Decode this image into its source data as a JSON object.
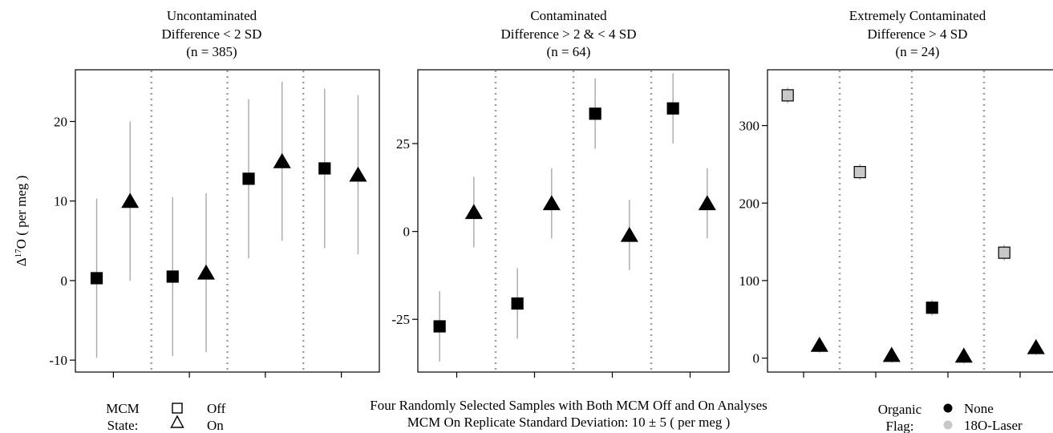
{
  "chart_data": [
    {
      "type": "scatter",
      "title_lines": [
        "Uncontaminated",
        "Difference < 2 SD",
        "(n = 385)"
      ],
      "ylabel": "Δ17O ( per meg )",
      "ylabel_parts": {
        "prefix": "Δ",
        "sup": "17",
        "rest": "O ( per meg )"
      },
      "ylim": [
        -11.5,
        26.5
      ],
      "yticks": [
        -10,
        0,
        10,
        20
      ],
      "ytick_labels": [
        "-10",
        "0",
        "10",
        "20"
      ],
      "groups": 4,
      "points": [
        {
          "group": 1,
          "mcm": "Off",
          "organic": "None",
          "y": 0.3,
          "err": 10
        },
        {
          "group": 1,
          "mcm": "On",
          "organic": "None",
          "y": 10,
          "err": 10
        },
        {
          "group": 2,
          "mcm": "Off",
          "organic": "None",
          "y": 0.5,
          "err": 10
        },
        {
          "group": 2,
          "mcm": "On",
          "organic": "None",
          "y": 1,
          "err": 10
        },
        {
          "group": 3,
          "mcm": "Off",
          "organic": "None",
          "y": 12.8,
          "err": 10
        },
        {
          "group": 3,
          "mcm": "On",
          "organic": "None",
          "y": 15,
          "err": 10
        },
        {
          "group": 4,
          "mcm": "Off",
          "organic": "None",
          "y": 14.1,
          "err": 10
        },
        {
          "group": 4,
          "mcm": "On",
          "organic": "None",
          "y": 13.3,
          "err": 10
        }
      ]
    },
    {
      "type": "scatter",
      "title_lines": [
        "Contaminated",
        "Difference > 2 & < 4 SD",
        "(n = 64)"
      ],
      "ylim": [
        -40,
        46
      ],
      "yticks": [
        -25,
        0,
        25
      ],
      "ytick_labels": [
        "-25",
        "0",
        "25"
      ],
      "groups": 4,
      "points": [
        {
          "group": 1,
          "mcm": "Off",
          "organic": "None",
          "y": -27,
          "err": 10
        },
        {
          "group": 1,
          "mcm": "On",
          "organic": "None",
          "y": 5.5,
          "err": 10
        },
        {
          "group": 2,
          "mcm": "Off",
          "organic": "None",
          "y": -20.5,
          "err": 10
        },
        {
          "group": 2,
          "mcm": "On",
          "organic": "None",
          "y": 8,
          "err": 10
        },
        {
          "group": 3,
          "mcm": "Off",
          "organic": "None",
          "y": 33.5,
          "err": 10
        },
        {
          "group": 3,
          "mcm": "On",
          "organic": "None",
          "y": -1,
          "err": 10
        },
        {
          "group": 4,
          "mcm": "Off",
          "organic": "None",
          "y": 35,
          "err": 10
        },
        {
          "group": 4,
          "mcm": "On",
          "organic": "None",
          "y": 8,
          "err": 10
        }
      ]
    },
    {
      "type": "scatter",
      "title_lines": [
        "Extremely Contaminated",
        "Difference > 4 SD",
        "(n = 24)"
      ],
      "ylim": [
        -18,
        372
      ],
      "yticks": [
        0,
        100,
        200,
        300
      ],
      "ytick_labels": [
        "0",
        "100",
        "200",
        "300"
      ],
      "groups": 4,
      "points": [
        {
          "group": 1,
          "mcm": "Off",
          "organic": "18O-Laser",
          "y": 339,
          "err": 10
        },
        {
          "group": 1,
          "mcm": "On",
          "organic": "None",
          "y": 17,
          "err": 10
        },
        {
          "group": 2,
          "mcm": "Off",
          "organic": "18O-Laser",
          "y": 240,
          "err": 10
        },
        {
          "group": 2,
          "mcm": "On",
          "organic": "None",
          "y": 4,
          "err": 10
        },
        {
          "group": 3,
          "mcm": "Off",
          "organic": "None",
          "y": 65,
          "err": 10
        },
        {
          "group": 3,
          "mcm": "On",
          "organic": "None",
          "y": 3,
          "err": 10
        },
        {
          "group": 4,
          "mcm": "Off",
          "organic": "18O-Laser",
          "y": 136,
          "err": 10
        },
        {
          "group": 4,
          "mcm": "On",
          "organic": "None",
          "y": 14,
          "err": 10
        }
      ]
    }
  ],
  "caption": {
    "line1": "Four Randomly Selected Samples with Both MCM Off and On Analyses",
    "line2": "MCM On Replicate Standard Deviation: 10 ± 5 ( per meg )"
  },
  "legend_mcm": {
    "title_line1": "MCM",
    "title_line2": "State:",
    "items": [
      {
        "label": "Off",
        "shape": "square-open"
      },
      {
        "label": "On",
        "shape": "triangle-open"
      }
    ]
  },
  "legend_organic": {
    "title_line1": "Organic",
    "title_line2": "Flag:",
    "items": [
      {
        "label": "None",
        "color": "#000000"
      },
      {
        "label": "18O-Laser",
        "color": "#c8c8c8"
      }
    ]
  },
  "colors": {
    "None": "#000000",
    "18O-Laser": "#c8c8c8",
    "errorbar": "#a8a8a8",
    "separator": "#a0a0a0"
  }
}
